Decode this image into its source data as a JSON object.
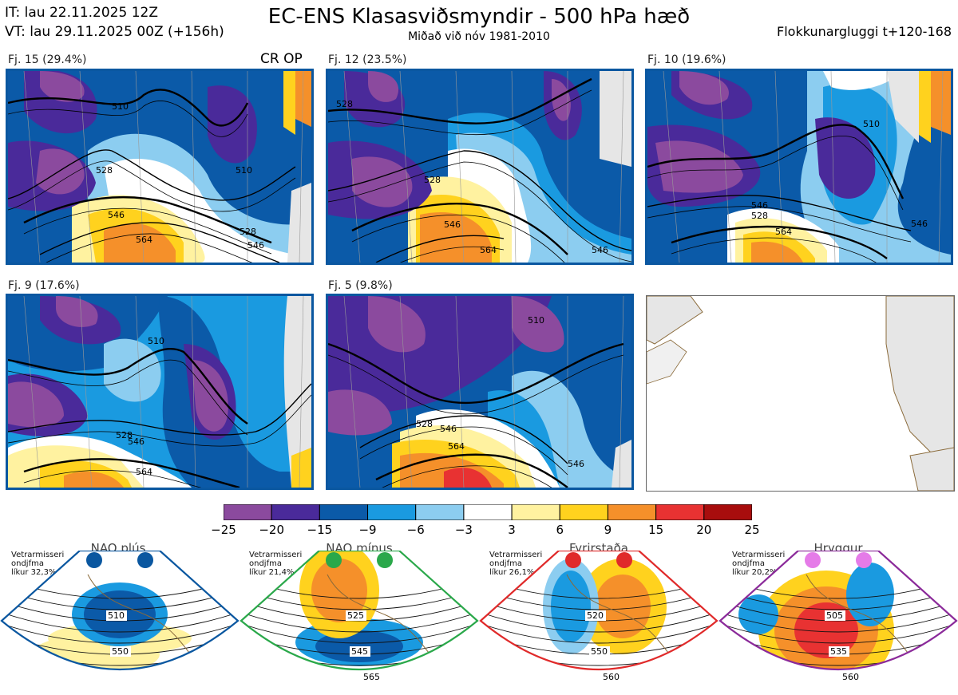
{
  "header": {
    "it": "IT: lau 22.11.2025 12Z",
    "vt": "VT: lau 29.11.2025 00Z  (+156h)",
    "title": "EC-ENS Klasasviðsmyndir - 500 hPa hæð",
    "subtitle": "Miðað við nóv 1981-2010",
    "window": "Flokkunargluggi t+120-168"
  },
  "clusters": [
    {
      "label": "Fj. 15 (29.4%)",
      "marker": "CR OP",
      "contours": [
        "510",
        "510",
        "528",
        "528",
        "546",
        "564",
        "546"
      ]
    },
    {
      "label": "Fj. 12 (23.5%)",
      "contours": [
        "528",
        "528",
        "546",
        "564",
        "546"
      ]
    },
    {
      "label": "Fj. 10 (19.6%)",
      "contours": [
        "510",
        "528",
        "546",
        "564",
        "546"
      ]
    },
    {
      "label": "Fj. 9 (17.6%)",
      "contours": [
        "510",
        "528",
        "546",
        "564"
      ]
    },
    {
      "label": "Fj. 5 (9.8%)",
      "contours": [
        "510",
        "528",
        "546",
        "564",
        "546"
      ]
    }
  ],
  "colors": {
    "frame": "#0a57a0",
    "land": "#e8e8e8",
    "coast": "#8a6a3a"
  },
  "chart_data": {
    "type": "heatmap",
    "title": "EC-ENS Klasasviðsmyndir - 500 hPa hæð",
    "colorbar": {
      "ticks": [
        "−25",
        "−20",
        "−15",
        "−9",
        "−6",
        "−3",
        "3",
        "6",
        "9",
        "15",
        "20",
        "25"
      ],
      "values": [
        -25,
        -20,
        -15,
        -9,
        -6,
        -3,
        3,
        6,
        9,
        15,
        20,
        25
      ],
      "colors": [
        "#8b4a9e",
        "#4a2a9a",
        "#0b5aa8",
        "#1a9ae0",
        "#8ccdf0",
        "#ffffff",
        "#fff2a0",
        "#ffd21e",
        "#f5902a",
        "#e83232",
        "#a80d0d"
      ]
    }
  },
  "regimes": [
    {
      "title": "NAO plús",
      "season": "Vetrarmisseri",
      "desc": "ondjfma",
      "prob": "líkur 32,3%",
      "labels": [
        "510",
        "550"
      ],
      "color": "#0a57a0",
      "dot": "#0a57a0"
    },
    {
      "title": "NAO mínus",
      "season": "Vetrarmisseri",
      "desc": "ondjfma",
      "prob": "líkur 21,4%",
      "labels": [
        "525",
        "545",
        "565"
      ],
      "color": "#2aa84a",
      "dot": "#2aa84a"
    },
    {
      "title": "Fyrirstaða",
      "season": "Vetrarmisseri",
      "desc": "ondjfma",
      "prob": "líkur 26,1%",
      "labels": [
        "520",
        "550",
        "560"
      ],
      "color": "#e02a2a",
      "dot": "#e02a2a"
    },
    {
      "title": "Hryggur",
      "season": "Vetrarmisseri",
      "desc": "ondjfma",
      "prob": "líkur 20,2%",
      "labels": [
        "505",
        "535",
        "560"
      ],
      "color": "#8b2a9a",
      "dot": "#e57be8"
    }
  ]
}
